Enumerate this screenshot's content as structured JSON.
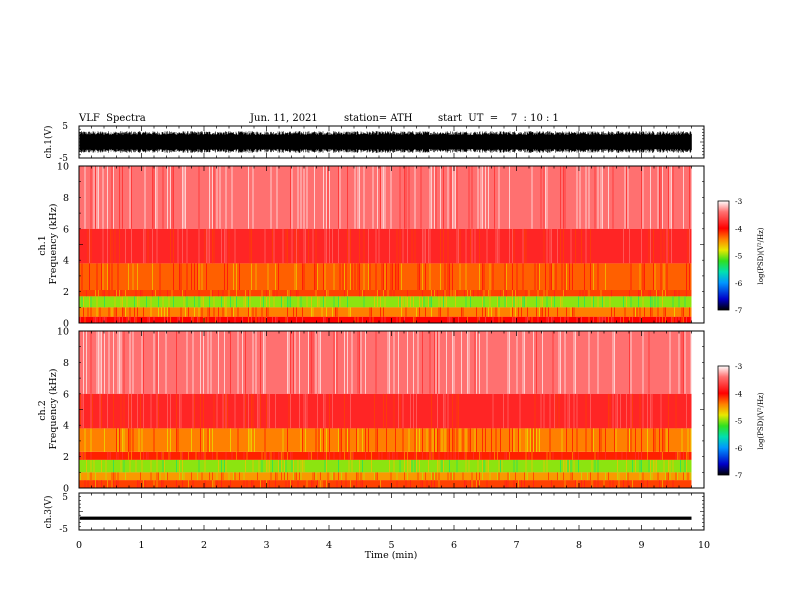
{
  "header": {
    "title": "VLF  Spectra",
    "date": "Jun. 11, 2021",
    "station": "station= ATH",
    "start": "start  UT  =    7  : 10 : 1"
  },
  "chart_data": [
    {
      "type": "line",
      "panel": "ch1-waveform",
      "ylabel": "ch.1(V)",
      "ylim": [
        -5,
        5
      ],
      "yticks": [
        "5",
        "-5"
      ],
      "series_note": "dense waveform, fills roughly -3..3 V",
      "xlim": [
        0,
        10
      ],
      "data_end_min": 9.8
    },
    {
      "type": "heatmap",
      "panel": "ch1-spectrogram",
      "ylabel": "ch.1\nFrequency  (kHz)",
      "ylim": [
        0,
        10
      ],
      "yticks": [
        "0",
        "2",
        "4",
        "6",
        "8",
        "10"
      ],
      "bands_khz": [
        {
          "from": 0.0,
          "to": 0.4,
          "level": -4.0
        },
        {
          "from": 0.4,
          "to": 1.0,
          "level": -4.4
        },
        {
          "from": 1.0,
          "to": 1.7,
          "level": -5.0
        },
        {
          "from": 1.7,
          "to": 2.1,
          "level": -4.2
        },
        {
          "from": 2.1,
          "to": 3.8,
          "level": -4.3
        },
        {
          "from": 3.8,
          "to": 6.0,
          "level": -3.8
        },
        {
          "from": 6.0,
          "to": 10.0,
          "level": -3.4
        }
      ],
      "colorbar": {
        "label": "log(PSD)(V²/Hz)",
        "range": [
          -7,
          -3
        ],
        "ticks": [
          "-3",
          "-4",
          "-5",
          "-6",
          "-7"
        ]
      }
    },
    {
      "type": "heatmap",
      "panel": "ch2-spectrogram",
      "ylabel": "ch.2\nFrequency  (kHz)",
      "ylim": [
        0,
        10
      ],
      "yticks": [
        "0",
        "2",
        "4",
        "6",
        "8",
        "10"
      ],
      "bands_khz": [
        {
          "from": 0.0,
          "to": 0.5,
          "level": -4.2
        },
        {
          "from": 0.5,
          "to": 1.0,
          "level": -4.5
        },
        {
          "from": 1.0,
          "to": 1.8,
          "level": -5.0
        },
        {
          "from": 1.8,
          "to": 2.3,
          "level": -4.1
        },
        {
          "from": 2.3,
          "to": 3.8,
          "level": -4.4
        },
        {
          "from": 3.8,
          "to": 6.0,
          "level": -3.8
        },
        {
          "from": 6.0,
          "to": 10.0,
          "level": -3.4
        }
      ],
      "colorbar": {
        "label": "log(PSD)(V²/Hz)",
        "range": [
          -7,
          -3
        ],
        "ticks": [
          "-3",
          "-4",
          "-5",
          "-6",
          "-7"
        ]
      }
    },
    {
      "type": "line",
      "panel": "ch3-waveform",
      "ylabel": "ch.3(V)",
      "ylim": [
        -5,
        5
      ],
      "yticks": [
        "5",
        "-5"
      ],
      "series_note": "nearly flat trace at about -1.8 V",
      "level": -1.8,
      "xlim": [
        0,
        10
      ],
      "data_end_min": 9.8
    }
  ],
  "xaxis": {
    "xlabel": "Time  (min)",
    "xlim": [
      0,
      10
    ],
    "ticks": [
      "0",
      "1",
      "2",
      "3",
      "4",
      "5",
      "6",
      "7",
      "8",
      "9",
      "10"
    ]
  },
  "colors": {
    "background": "#ffffff",
    "frame": "#000000",
    "waveform": "#000000",
    "colormap": [
      "#000000",
      "#0000c8",
      "#0096ff",
      "#00e0b0",
      "#30e020",
      "#e8e800",
      "#ff8000",
      "#ff0000",
      "#ff7070",
      "#ffffff"
    ]
  }
}
